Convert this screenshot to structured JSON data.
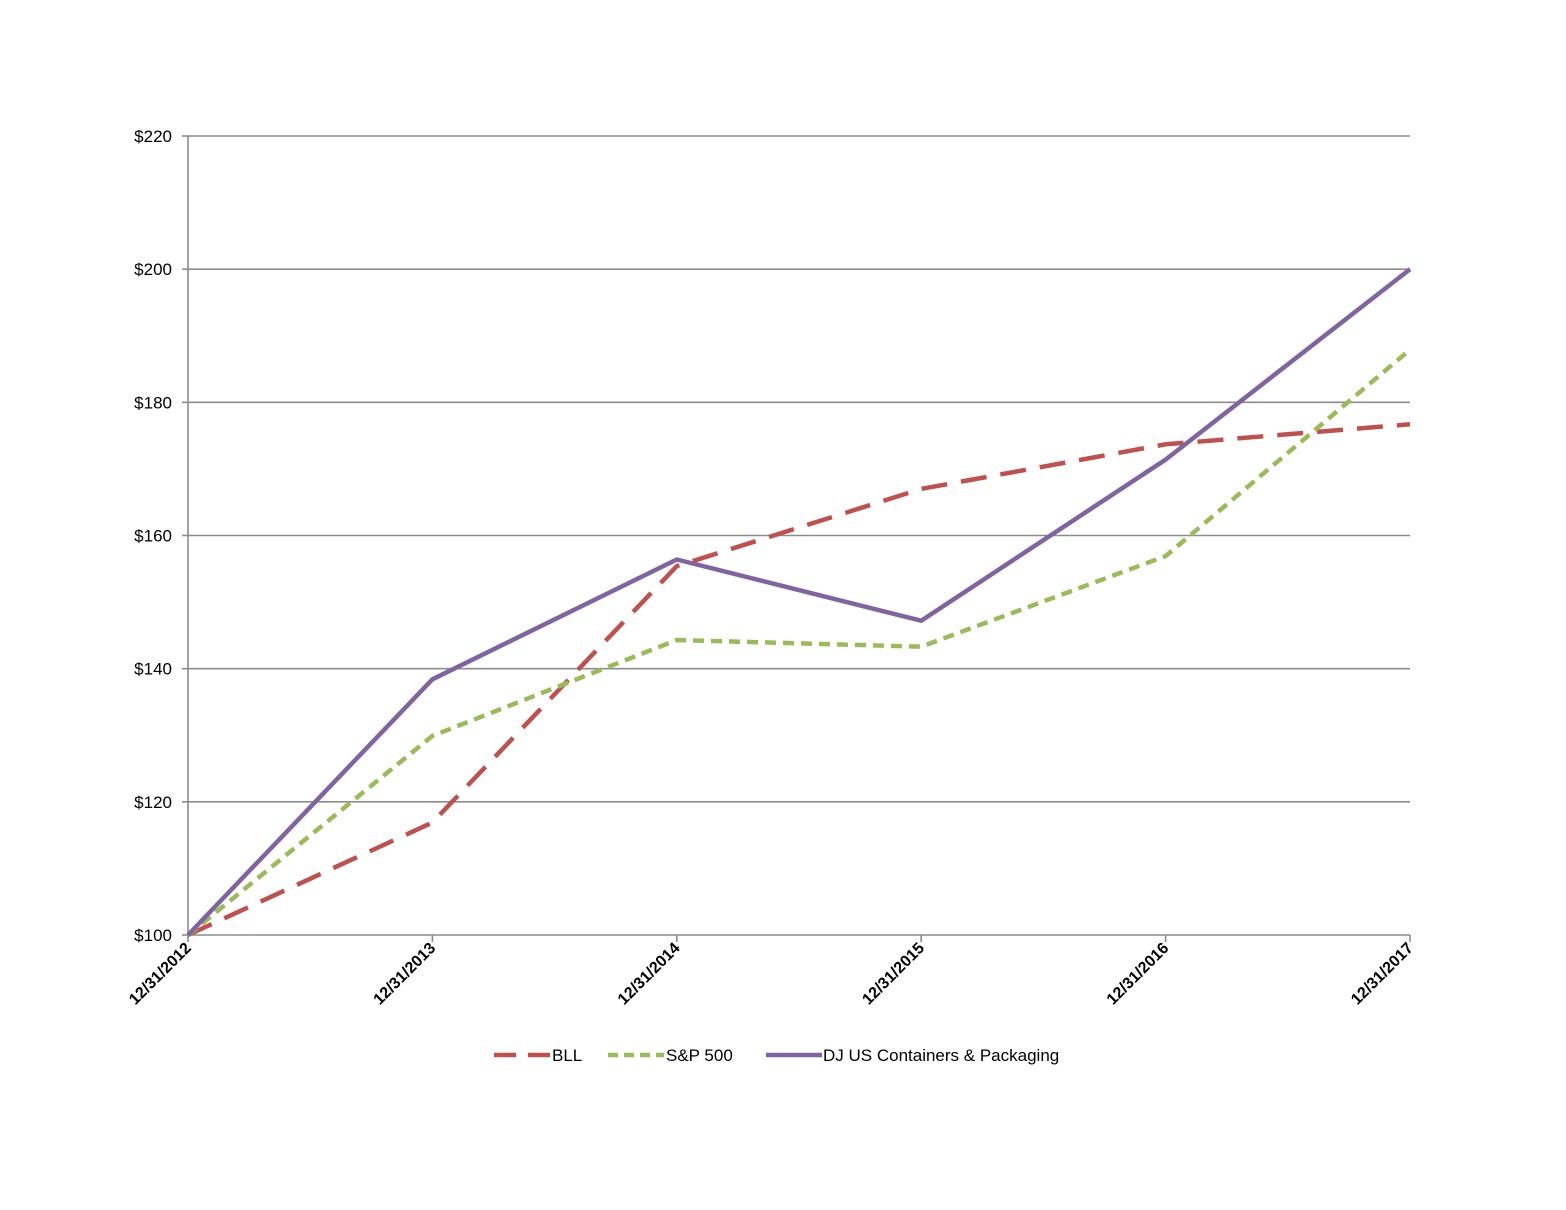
{
  "chart_data": {
    "type": "line",
    "x": [
      "12/31/2012",
      "12/31/2013",
      "12/31/2014",
      "12/31/2015",
      "12/31/2016",
      "12/31/2017"
    ],
    "ylim": [
      100,
      220
    ],
    "yticks": [
      100,
      120,
      140,
      160,
      180,
      200,
      220
    ],
    "ytick_labels": [
      "$100",
      "$120",
      "$140",
      "$160",
      "$180",
      "$200",
      "$220"
    ],
    "grid": true,
    "legend_position": "bottom",
    "series": [
      {
        "name": "BLL",
        "values": [
          100,
          116.9,
          155.4,
          167,
          173.7,
          176.7
        ],
        "color": "#c0504d",
        "style": "long-dash"
      },
      {
        "name": "S&P 500",
        "values": [
          100,
          129.9,
          144.3,
          143.3,
          156.9,
          187.9
        ],
        "color": "#9bbb59",
        "style": "short-dash"
      },
      {
        "name": "DJ US Containers & Packaging",
        "values": [
          100,
          138.4,
          156.4,
          147.2,
          171.4,
          200
        ],
        "color": "#8064a2",
        "style": "solid"
      }
    ]
  }
}
